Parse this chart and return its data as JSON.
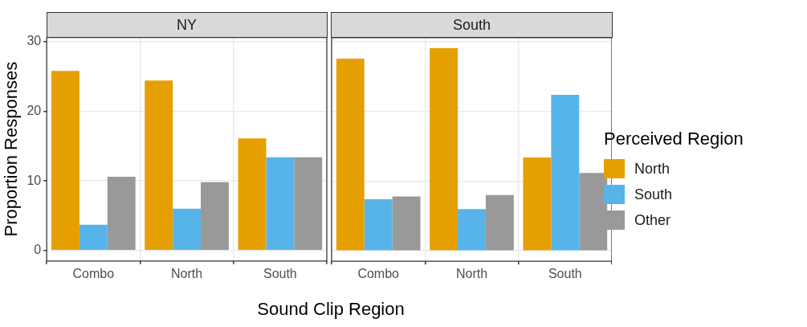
{
  "chart_data": [
    {
      "type": "bar",
      "title": "NY",
      "xlabel": "Sound Clip Region",
      "ylabel": "Proportion Responses",
      "categories": [
        "Combo",
        "North",
        "South"
      ],
      "series": [
        {
          "color": "#e69f00",
          "values": [
            25.8,
            24.4,
            16.1
          ]
        },
        {
          "color": "#56b4e9",
          "values": [
            3.7,
            6.0,
            13.4
          ]
        },
        {
          "color": "#999999",
          "values": [
            10.6,
            9.8,
            13.4
          ]
        }
      ],
      "ylim": [
        -1.5,
        30.6
      ],
      "yticks": [
        0,
        10,
        20,
        30
      ],
      "grid": true,
      "legend": false
    },
    {
      "type": "bar",
      "title": "South",
      "legend_title": "Perceived Region",
      "categories": [
        "Combo",
        "North",
        "South"
      ],
      "series": [
        {
          "name": "North",
          "color": "#e69f00",
          "values": [
            27.6,
            29.1,
            13.4
          ]
        },
        {
          "name": "South",
          "color": "#56b4e9",
          "values": [
            7.4,
            6.0,
            22.4
          ]
        },
        {
          "name": "Other",
          "color": "#999999",
          "values": [
            7.8,
            8.0,
            11.2
          ]
        }
      ],
      "ylim": [
        -1.5,
        30.6
      ],
      "yticks": [
        0,
        10,
        20,
        30
      ],
      "grid": true,
      "legend": "right",
      "tick_labels": "x"
    }
  ]
}
